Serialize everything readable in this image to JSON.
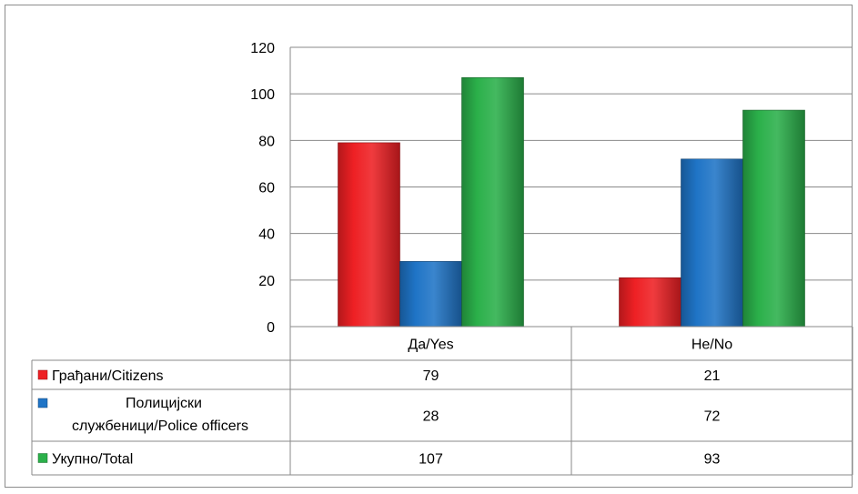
{
  "chart_data": {
    "type": "bar",
    "categories": [
      "Да/Yes",
      "Не/No"
    ],
    "series": [
      {
        "name": "Грађани/Citizens",
        "values": [
          79,
          21
        ],
        "color": "#ee2024"
      },
      {
        "name": "Полицијски службеници/Police officers",
        "name_lines": [
          "Полицијски",
          "службеници/Police officers"
        ],
        "values": [
          28,
          72
        ],
        "color": "#1f74c6"
      },
      {
        "name": "Укупно/Total",
        "values": [
          107,
          93
        ],
        "color": "#2bb04a"
      }
    ],
    "ylim": [
      0,
      120
    ],
    "yticks": [
      "0",
      "20",
      "40",
      "60",
      "80",
      "100",
      "120"
    ],
    "grid": true,
    "legend": "data-table",
    "title": "",
    "xlabel": "",
    "ylabel": ""
  }
}
